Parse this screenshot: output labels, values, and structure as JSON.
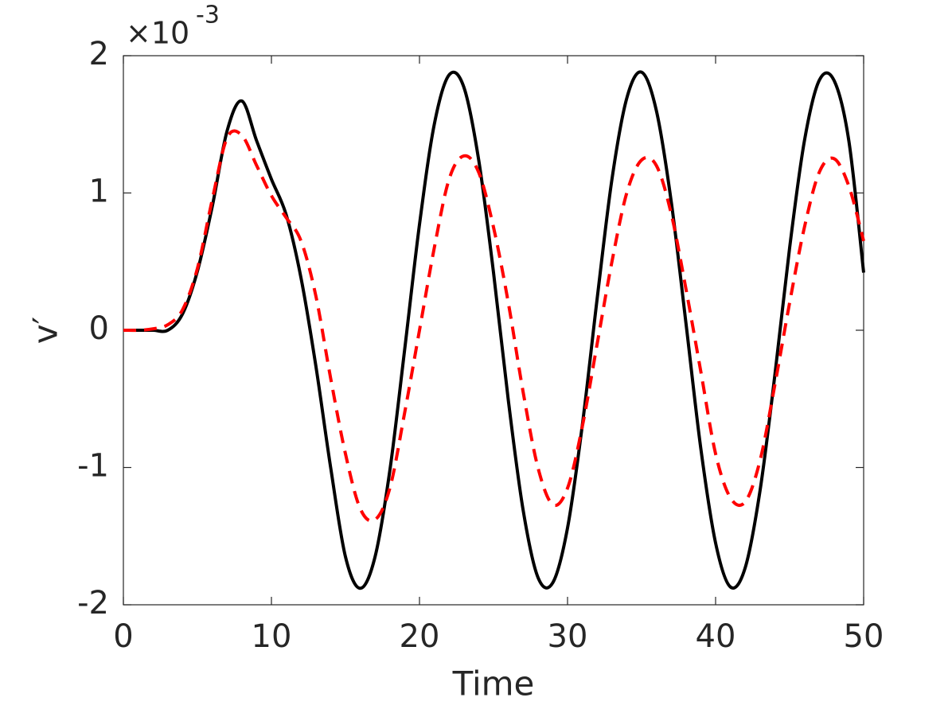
{
  "chart_data": {
    "type": "line",
    "xlabel": "Time",
    "ylabel": "v′",
    "y_exponent_base": "×10",
    "y_exponent_power": "-3",
    "x": [
      0,
      1,
      2,
      3,
      4,
      5,
      6,
      7,
      8,
      9,
      10,
      11,
      12,
      13,
      14,
      15,
      16,
      17,
      18,
      19,
      20,
      21,
      22,
      23,
      24,
      25,
      26,
      27,
      28,
      29,
      30,
      31,
      32,
      33,
      34,
      35,
      36,
      37,
      38,
      39,
      40,
      41,
      42,
      43,
      44,
      45,
      46,
      47,
      48,
      49,
      50
    ],
    "series": [
      {
        "color": "#000000",
        "dash": "solid",
        "values": [
          0,
          0,
          0,
          0,
          0.12,
          0.43,
          0.9,
          1.45,
          1.67,
          1.38,
          1.1,
          0.84,
          0.38,
          -0.26,
          -1.0,
          -1.65,
          -1.88,
          -1.65,
          -1.02,
          -0.14,
          0.77,
          1.5,
          1.86,
          1.77,
          1.24,
          0.42,
          -0.51,
          -1.31,
          -1.8,
          -1.84,
          -1.44,
          -0.69,
          0.23,
          1.1,
          1.69,
          1.88,
          1.6,
          0.94,
          0.05,
          -0.86,
          -1.55,
          -1.87,
          -1.73,
          -1.17,
          -0.33,
          0.6,
          1.38,
          1.82,
          1.82,
          1.38,
          0.42
        ]
      },
      {
        "color": "#ff0000",
        "dash": "dashed",
        "values": [
          0,
          0,
          0.01,
          0.04,
          0.15,
          0.45,
          0.95,
          1.4,
          1.42,
          1.2,
          0.98,
          0.82,
          0.65,
          0.25,
          -0.35,
          -0.9,
          -1.3,
          -1.38,
          -1.15,
          -0.6,
          0.0,
          0.6,
          1.1,
          1.27,
          1.15,
          0.75,
          0.2,
          -0.45,
          -1.0,
          -1.27,
          -1.15,
          -0.7,
          -0.1,
          0.5,
          1.0,
          1.24,
          1.2,
          0.85,
          0.3,
          -0.3,
          -0.9,
          -1.22,
          -1.25,
          -0.95,
          -0.4,
          0.2,
          0.75,
          1.15,
          1.25,
          1.05,
          0.65
        ]
      }
    ],
    "xlim": [
      0,
      50
    ],
    "xticks": [
      0,
      10,
      20,
      30,
      40,
      50
    ],
    "ylim": [
      -2,
      2
    ],
    "yticks": [
      -2,
      -1,
      0,
      1,
      2
    ],
    "grid": false,
    "box": true
  }
}
